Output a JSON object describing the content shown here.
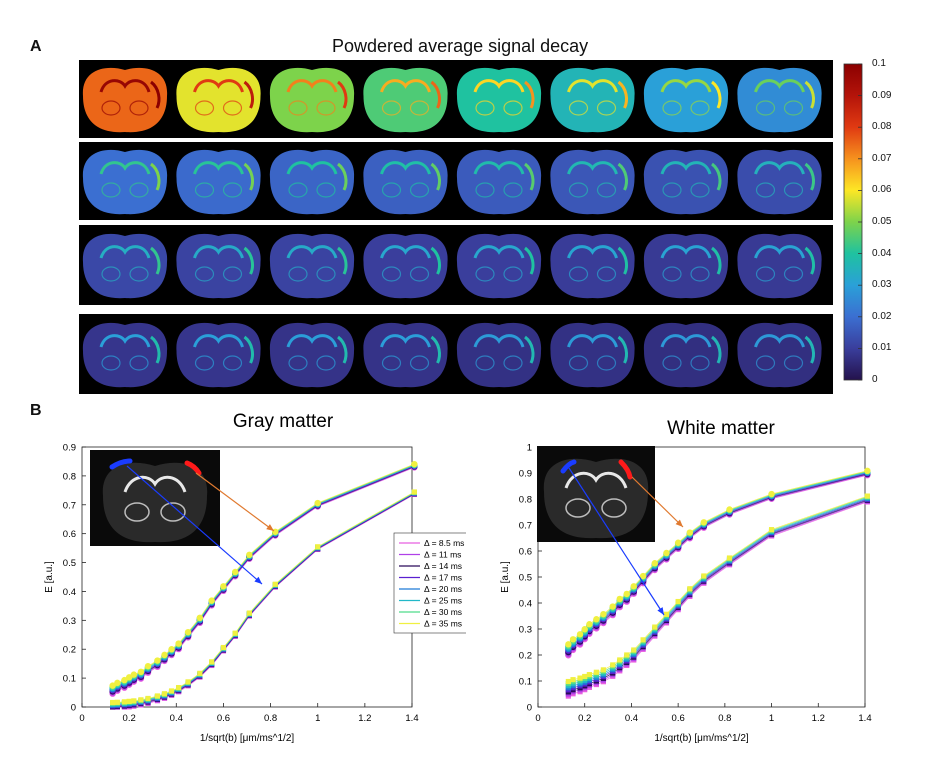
{
  "panel_a": {
    "letter": "A",
    "title": "Powdered average signal decay",
    "colorbar_ticks": [
      "0.1",
      "0.09",
      "0.08",
      "0.07",
      "0.06",
      "0.05",
      "0.04",
      "0.03",
      "0.02",
      "0.01",
      "0"
    ],
    "colorbar_colors": [
      "#8b0000",
      "#e03a12",
      "#f6921e",
      "#fde725",
      "#7dd34b",
      "#1fc2a0",
      "#2aa0d8",
      "#3b6fd1",
      "#3a3e9c",
      "#24124c"
    ],
    "row_levels": [
      [
        0.075,
        0.058,
        0.05,
        0.045,
        0.04,
        0.036,
        0.03,
        0.026
      ],
      [
        0.02,
        0.019,
        0.018,
        0.017,
        0.016,
        0.015,
        0.014,
        0.013
      ],
      [
        0.012,
        0.011,
        0.011,
        0.01,
        0.01,
        0.0095,
        0.009,
        0.009
      ],
      [
        0.008,
        0.008,
        0.0075,
        0.0075,
        0.007,
        0.007,
        0.0065,
        0.0065
      ]
    ]
  },
  "panel_b": {
    "letter": "B"
  },
  "legend": {
    "entries": [
      "Δ = 8.5 ms",
      "Δ = 11 ms",
      "Δ = 14 ms",
      "Δ = 17 ms",
      "Δ = 20 ms",
      "Δ = 25 ms",
      "Δ = 30 ms",
      "Δ = 35 ms"
    ],
    "colors": [
      "#e85fe0",
      "#b040e8",
      "#2a0a5a",
      "#5a20d0",
      "#1e7bd8",
      "#22b8c8",
      "#4fdc8a",
      "#f0f040"
    ]
  },
  "chart_data": [
    {
      "type": "scatter",
      "title": "Gray matter",
      "xlabel": "1/sqrt(b) [μm/ms^1/2]",
      "ylabel": "E [a.u.]",
      "xlim": [
        0,
        1.4
      ],
      "ylim": [
        0,
        0.9
      ],
      "xticks": [
        "0",
        "0.2",
        "0.4",
        "0.6",
        "0.8",
        "1",
        "1.2",
        "1.4"
      ],
      "yticks": [
        "0",
        "0.1",
        "0.2",
        "0.3",
        "0.4",
        "0.5",
        "0.6",
        "0.7",
        "0.8",
        "0.9"
      ],
      "x": [
        0.13,
        0.15,
        0.18,
        0.2,
        0.22,
        0.25,
        0.28,
        0.32,
        0.35,
        0.38,
        0.41,
        0.45,
        0.5,
        0.55,
        0.6,
        0.65,
        0.71,
        0.82,
        1.0,
        1.41
      ],
      "series": [
        {
          "name": "upper",
          "values": [
            0.06,
            0.07,
            0.08,
            0.09,
            0.1,
            0.11,
            0.13,
            0.15,
            0.17,
            0.19,
            0.21,
            0.25,
            0.3,
            0.36,
            0.41,
            0.46,
            0.52,
            0.6,
            0.7,
            0.835
          ]
        },
        {
          "name": "lower",
          "values": [
            0.005,
            0.006,
            0.008,
            0.01,
            0.012,
            0.016,
            0.021,
            0.03,
            0.038,
            0.048,
            0.06,
            0.08,
            0.11,
            0.15,
            0.2,
            0.25,
            0.32,
            0.42,
            0.55,
            0.74
          ]
        }
      ],
      "annotation_upper_range": [
        0.05,
        0.08
      ],
      "annotation_lower_range": [
        0.003,
        0.01
      ]
    },
    {
      "type": "scatter",
      "title": "White matter",
      "xlabel": "1/sqrt(b) [μm/ms^1/2]",
      "ylabel": "E [a.u.]",
      "xlim": [
        0,
        1.4
      ],
      "ylim": [
        0,
        1
      ],
      "xticks": [
        "0",
        "0.2",
        "0.4",
        "0.6",
        "0.8",
        "1",
        "1.2",
        "1.4"
      ],
      "yticks": [
        "0",
        "0.1",
        "0.2",
        "0.3",
        "0.4",
        "0.5",
        "0.6",
        "0.7",
        "0.8",
        "0.9",
        "1"
      ],
      "x": [
        0.13,
        0.15,
        0.18,
        0.2,
        0.22,
        0.25,
        0.28,
        0.32,
        0.35,
        0.38,
        0.41,
        0.45,
        0.5,
        0.55,
        0.6,
        0.65,
        0.71,
        0.82,
        1.0,
        1.41
      ],
      "series": [
        {
          "name": "upper",
          "values": [
            0.22,
            0.24,
            0.26,
            0.28,
            0.3,
            0.32,
            0.34,
            0.37,
            0.4,
            0.42,
            0.45,
            0.49,
            0.54,
            0.58,
            0.62,
            0.66,
            0.7,
            0.75,
            0.81,
            0.9
          ]
        },
        {
          "name": "lower",
          "values": [
            0.07,
            0.078,
            0.085,
            0.092,
            0.1,
            0.11,
            0.12,
            0.14,
            0.16,
            0.18,
            0.2,
            0.24,
            0.29,
            0.34,
            0.39,
            0.44,
            0.49,
            0.56,
            0.67,
            0.8
          ]
        }
      ]
    }
  ]
}
